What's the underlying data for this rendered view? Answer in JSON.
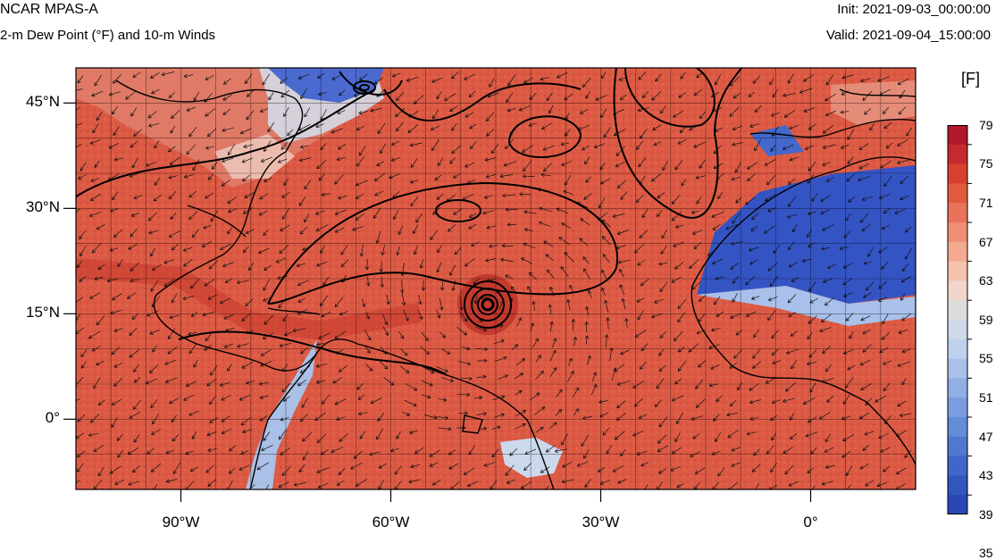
{
  "header": {
    "model": "NCAR MPAS-A",
    "field": "2-m Dew Point (°F) and 10-m Winds",
    "init": "Init: 2021-09-03_00:00:00",
    "valid": "Valid: 2021-09-04_15:00:00"
  },
  "map": {
    "lat_labels": [
      "45°N",
      "30°N",
      "15°N",
      "0°"
    ],
    "lon_labels": [
      "90°W",
      "60°W",
      "30°W",
      "0°"
    ],
    "lat_values": [
      45,
      30,
      15,
      0
    ],
    "lon_values": [
      -90,
      -60,
      -30,
      0
    ],
    "extent": {
      "lon_min": -105,
      "lon_max": 15,
      "lat_min": -10,
      "lat_max": 50
    },
    "storm_center": {
      "lon": -45.5,
      "lat": 16.5
    },
    "colors": {
      "ocean_warm": "#de5a44",
      "ocean_hot": "#c9382c",
      "land_dry": "#c9d6e8",
      "desert_blue": "#3a5bc8",
      "grid_line": "#000000"
    }
  },
  "colorbar": {
    "unit": "[F]",
    "labels": [
      "79",
      "75",
      "71",
      "67",
      "63",
      "59",
      "55",
      "51",
      "47",
      "43",
      "39",
      "35"
    ],
    "colors": [
      "#b2182b",
      "#c42a2e",
      "#d6412f",
      "#e05a3c",
      "#e8735a",
      "#ee8e74",
      "#f3a98f",
      "#f5c2ad",
      "#f0d6cc",
      "#dfdcdc",
      "#d0d9e8",
      "#bfd0ec",
      "#a9c0ea",
      "#92afe5",
      "#7b9ddf",
      "#658cd9",
      "#5078d0",
      "#3f66c8",
      "#3255be",
      "#2a47b4"
    ]
  }
}
